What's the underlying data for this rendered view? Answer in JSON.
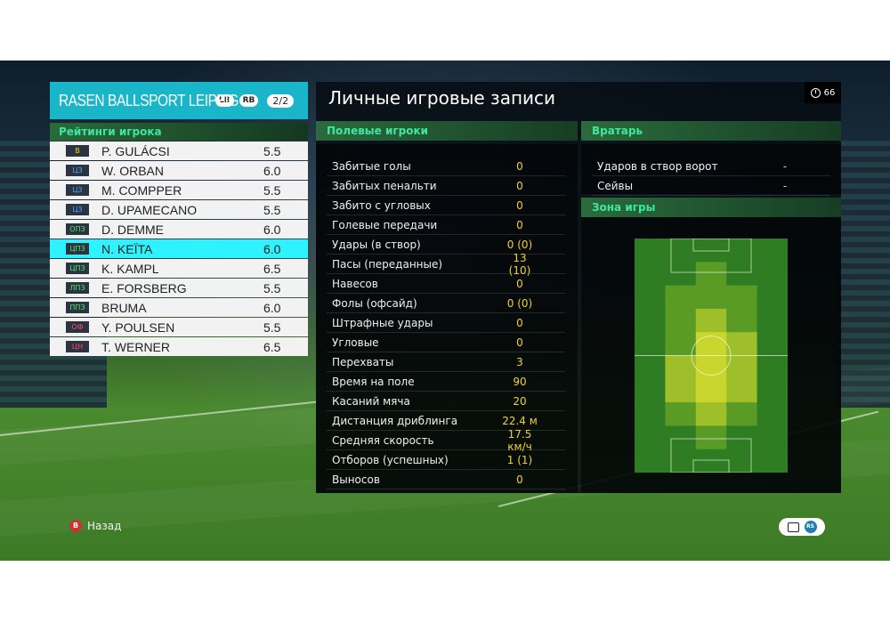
{
  "team": {
    "name": "RASEN BALLSPORT LEIPZIG",
    "lb": "LB",
    "rb": "RB",
    "page": "2/2"
  },
  "ratings_title": "Рейтинги игрока",
  "players": [
    {
      "pos": "В",
      "pos_color": "y",
      "name": "P. GULÁCSI",
      "rating": "5.5"
    },
    {
      "pos": "ЦЗ",
      "pos_color": "b",
      "name": "W. ORBAN",
      "rating": "6.0"
    },
    {
      "pos": "ЦЗ",
      "pos_color": "b",
      "name": "M. COMPPER",
      "rating": "5.5"
    },
    {
      "pos": "ЦЗ",
      "pos_color": "b",
      "name": "D. UPAMECANO",
      "rating": "5.5"
    },
    {
      "pos": "ОПЗ",
      "pos_color": "g",
      "name": "D. DEMME",
      "rating": "6.0"
    },
    {
      "pos": "ЦПЗ",
      "pos_color": "g",
      "name": "N. KEÏTA",
      "rating": "6.0",
      "active": true
    },
    {
      "pos": "ЦПЗ",
      "pos_color": "g",
      "name": "K. KAMPL",
      "rating": "6.5"
    },
    {
      "pos": "ЛПЗ",
      "pos_color": "g",
      "name": "E. FORSBERG",
      "rating": "5.5"
    },
    {
      "pos": "ППЗ",
      "pos_color": "g",
      "name": "BRUMA",
      "rating": "6.0"
    },
    {
      "pos": "ОФ",
      "pos_color": "r",
      "name": "Y. POULSEN",
      "rating": "5.5"
    },
    {
      "pos": "ЦН",
      "pos_color": "r",
      "name": "T. WERNER",
      "rating": "6.5"
    }
  ],
  "main_title": "Личные игровые записи",
  "clock_value": "66",
  "outfield_title": "Полевые игроки",
  "outfield_stats": [
    {
      "label": "Забитые голы",
      "value": "0"
    },
    {
      "label": "Забитых пенальти",
      "value": "0"
    },
    {
      "label": "Забито с угловых",
      "value": "0"
    },
    {
      "label": "Голевые передачи",
      "value": "0"
    },
    {
      "label": "Удары (в створ)",
      "value": "0 (0)"
    },
    {
      "label": "Пасы (переданные)",
      "value": "13 (10)"
    },
    {
      "label": "Навесов",
      "value": "0"
    },
    {
      "label": "Фолы (офсайд)",
      "value": "0 (0)"
    },
    {
      "label": "Штрафные удары",
      "value": "0"
    },
    {
      "label": "Угловые",
      "value": "0"
    },
    {
      "label": "Перехваты",
      "value": "3"
    },
    {
      "label": "Время на поле",
      "value": "90"
    },
    {
      "label": "Касаний мяча",
      "value": "20"
    },
    {
      "label": "Дистанция дриблинга",
      "value": "22.4 м"
    },
    {
      "label": "Средняя скорость",
      "value": "17.5 км/ч"
    },
    {
      "label": "Отборов (успешных)",
      "value": "1 (1)"
    },
    {
      "label": "Выносов",
      "value": "0"
    }
  ],
  "gk_title": "Вратарь",
  "gk_stats": [
    {
      "label": "Ударов в створ ворот",
      "value": "-"
    },
    {
      "label": "Сейвы",
      "value": "-"
    }
  ],
  "zone_title": "Зона игры",
  "heatmap": {
    "cols": 5,
    "rows": 10,
    "intensity": [
      [
        0,
        0,
        0,
        0,
        0
      ],
      [
        0,
        0,
        1,
        0,
        0
      ],
      [
        0,
        1,
        1,
        1,
        0
      ],
      [
        0,
        1,
        2,
        1,
        0
      ],
      [
        0,
        1,
        3,
        2,
        0
      ],
      [
        0,
        2,
        3,
        2,
        0
      ],
      [
        0,
        2,
        3,
        2,
        0
      ],
      [
        0,
        1,
        2,
        1,
        0
      ],
      [
        0,
        0,
        1,
        0,
        0
      ],
      [
        0,
        0,
        0,
        0,
        0
      ]
    ],
    "colors": [
      "#2f7d22",
      "#5a9b26",
      "#9ebf2a",
      "#c9d62e"
    ]
  },
  "back_key": "B",
  "back_label": "Назад",
  "rs_label": "RS"
}
